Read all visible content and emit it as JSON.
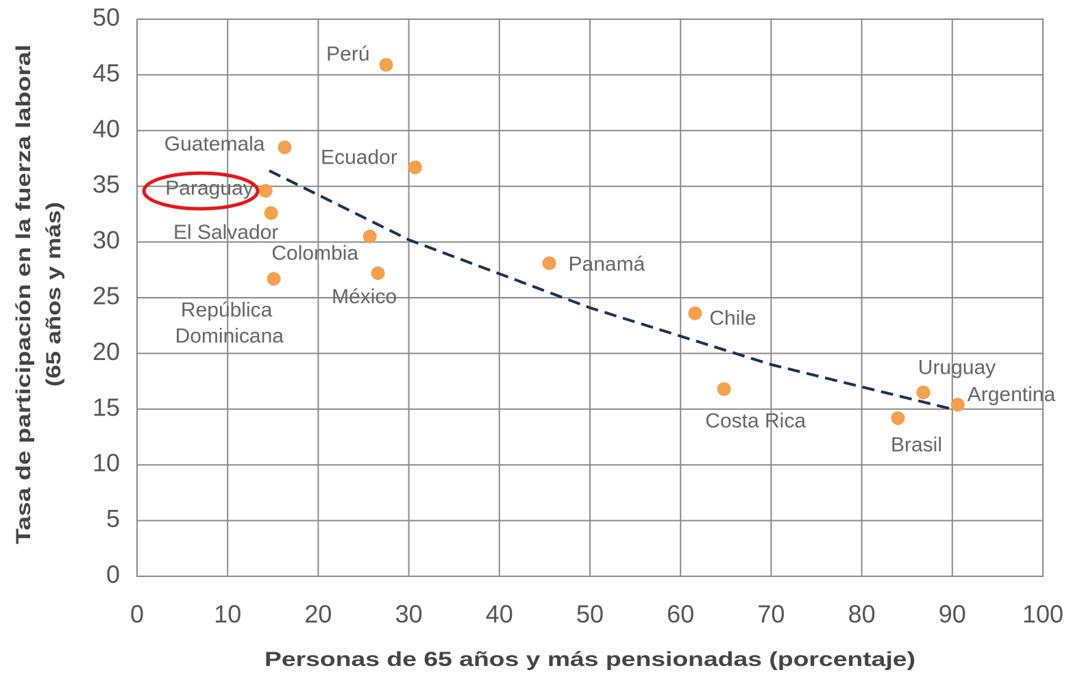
{
  "chart_data": {
    "type": "scatter",
    "x_label": "Personas de 65 años y más pensionadas (porcentaje)",
    "y_label": [
      "Tasa de participación en la fuerza laboral",
      "(65 años y más)"
    ],
    "labels": [
      "Perú",
      "Guatemala",
      "Ecuador",
      "Paraguay",
      "El Salvador",
      "Colombia",
      "República Dominicana",
      "México",
      "Panamá",
      "Chile",
      "Costa Rica",
      "Uruguay",
      "Argentina",
      "Brasil"
    ],
    "x": [
      27.5,
      16.3,
      30.7,
      14.2,
      14.8,
      25.7,
      15.1,
      26.6,
      45.5,
      61.6,
      64.8,
      86.8,
      90.6,
      84.0
    ],
    "values": [
      45.9,
      38.5,
      36.7,
      34.6,
      32.6,
      30.5,
      26.7,
      27.2,
      28.1,
      23.6,
      16.8,
      16.5,
      15.4,
      14.2
    ],
    "color": "#f5a04a",
    "trendline": {
      "x": [
        14.6,
        30,
        50,
        70,
        90
      ],
      "values": [
        36.4,
        30.2,
        24.1,
        19.0,
        15.0
      ],
      "color": "#1f3050"
    },
    "xlim": [
      0,
      100
    ],
    "xticks": [
      0,
      10,
      20,
      30,
      40,
      50,
      60,
      70,
      80,
      90,
      100
    ],
    "ylim": [
      0,
      50
    ],
    "yticks": [
      0,
      5,
      10,
      15,
      20,
      25,
      30,
      35,
      40,
      45,
      50
    ],
    "grid": true
  }
}
